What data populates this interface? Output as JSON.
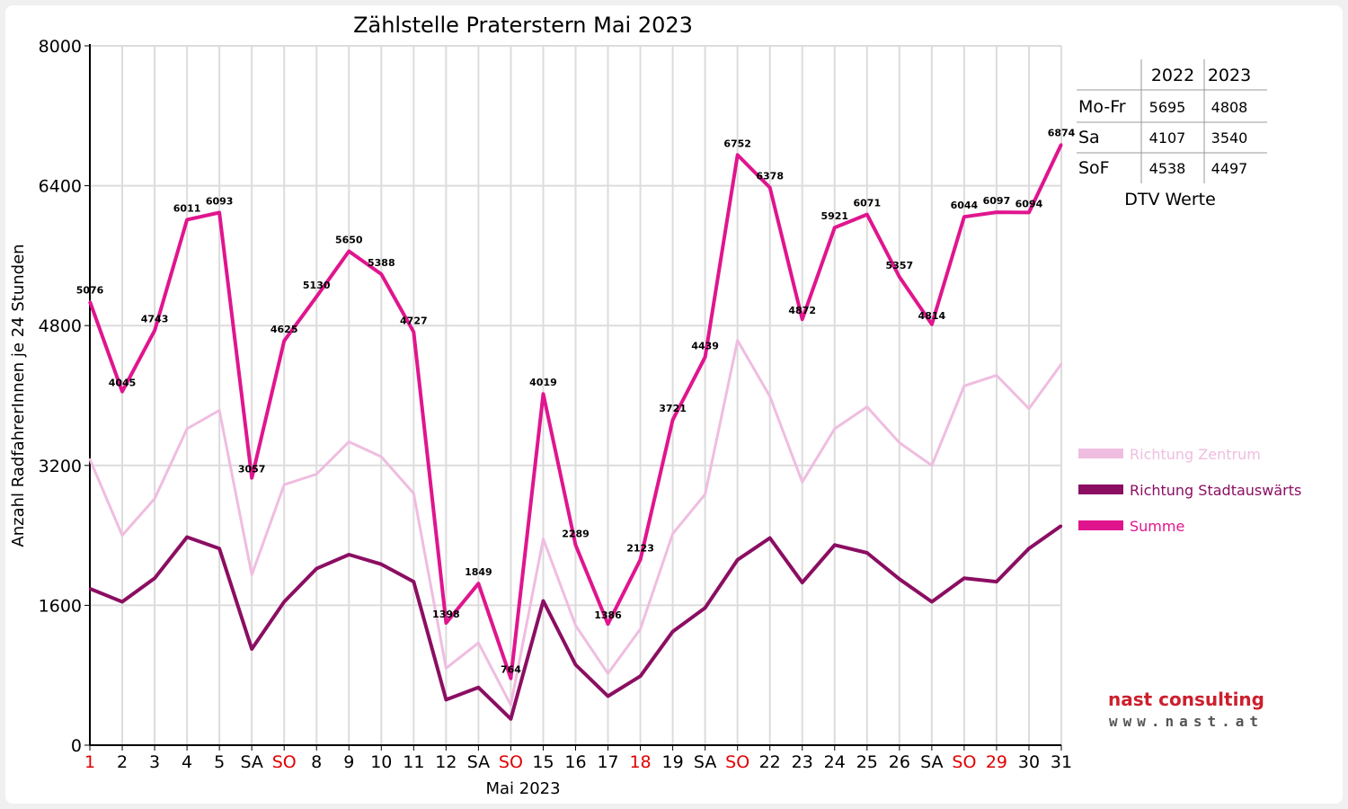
{
  "chart_data": {
    "type": "line",
    "title": "Zählstelle Praterstern Mai 2023",
    "xlabel": "Mai 2023",
    "ylabel": "Anzahl RadfahrerInnen je 24 Stunden",
    "ylim": [
      0,
      8000
    ],
    "yticks": [
      0,
      1600,
      3200,
      4800,
      6400,
      8000
    ],
    "grid": true,
    "legend_position": "right",
    "categories": [
      "1",
      "2",
      "3",
      "4",
      "5",
      "SA",
      "SO",
      "8",
      "9",
      "10",
      "11",
      "12",
      "SA",
      "SO",
      "15",
      "16",
      "17",
      "18",
      "19",
      "SA",
      "SO",
      "22",
      "23",
      "24",
      "25",
      "26",
      "SA",
      "SO",
      "29",
      "30",
      "31"
    ],
    "red_categories": [
      0,
      6,
      13,
      17,
      20,
      27,
      28
    ],
    "series": [
      {
        "name": "Richtung Zentrum",
        "color": "#efbde0",
        "values": [
          3270,
          2400,
          2820,
          3620,
          3830,
          1950,
          2980,
          3100,
          3470,
          3300,
          2880,
          880,
          1170,
          460,
          2360,
          1370,
          820,
          1330,
          2420,
          2870,
          4630,
          3990,
          3010,
          3620,
          3870,
          3460,
          3200,
          4110,
          4230,
          3850,
          4360
        ]
      },
      {
        "name": "Richtung Stadtauswärts",
        "color": "#8b0e62",
        "values": [
          1790,
          1640,
          1910,
          2380,
          2250,
          1100,
          1640,
          2020,
          2180,
          2070,
          1870,
          520,
          660,
          300,
          1650,
          920,
          560,
          790,
          1300,
          1570,
          2120,
          2370,
          1860,
          2290,
          2200,
          1900,
          1640,
          1910,
          1870,
          2250,
          2510
        ]
      },
      {
        "name": "Summe",
        "color": "#e0158e",
        "values": [
          5076,
          4045,
          4743,
          6011,
          6093,
          3057,
          4625,
          5130,
          5650,
          5388,
          4727,
          1398,
          1849,
          764,
          4019,
          2289,
          1386,
          2123,
          3721,
          4439,
          6752,
          6378,
          4872,
          5921,
          6071,
          5357,
          4814,
          6044,
          6097,
          6094,
          6874
        ]
      }
    ]
  },
  "dtv_table": {
    "headers": [
      "",
      "2022",
      "2023"
    ],
    "rows": [
      {
        "label": "Mo-Fr",
        "v2022": "5695",
        "v2023": "4808"
      },
      {
        "label": "Sa",
        "v2022": "4107",
        "v2023": "3540"
      },
      {
        "label": "SoF",
        "v2022": "4538",
        "v2023": "4497"
      }
    ],
    "caption": "DTV Werte"
  },
  "logo": {
    "name": "nast consulting",
    "url": "www.nast.at",
    "text_color": "#cc1f2d"
  }
}
